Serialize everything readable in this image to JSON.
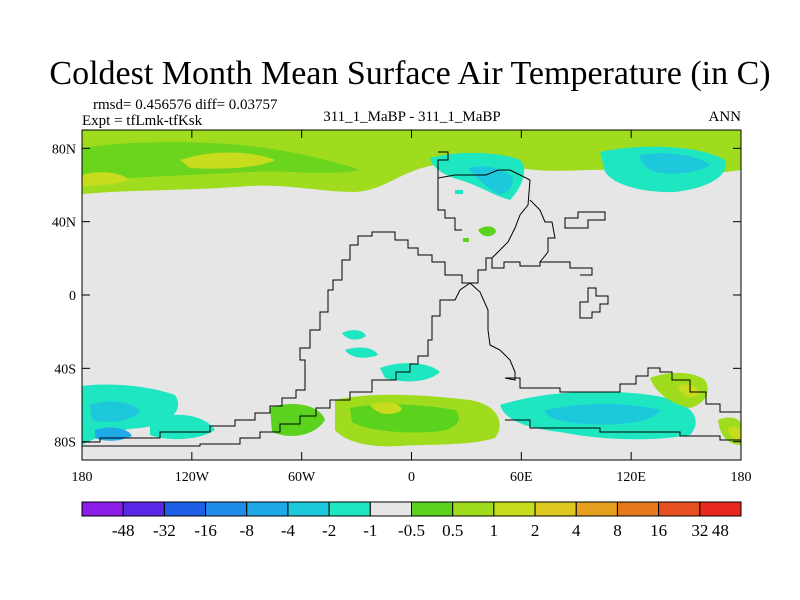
{
  "chart_data": {
    "type": "heatmap",
    "title": "Coldest Month Mean Surface Air Temperature (in C)",
    "stats_line": "rmsd= 0.456576 diff= 0.03757",
    "expt_line": "Expt = tfLmk-tfKsk",
    "center_label": "311_1_MaBP - 311_1_MaBP",
    "season_label": "ANN",
    "xlim": [
      -180,
      180
    ],
    "ylim": [
      -90,
      90
    ],
    "x_ticks": [
      {
        "value": -180,
        "label": "180"
      },
      {
        "value": -120,
        "label": "120W"
      },
      {
        "value": -60,
        "label": "60W"
      },
      {
        "value": 0,
        "label": "0"
      },
      {
        "value": 60,
        "label": "60E"
      },
      {
        "value": 120,
        "label": "120E"
      },
      {
        "value": 180,
        "label": "180"
      }
    ],
    "y_ticks": [
      {
        "value": 80,
        "label": "80N"
      },
      {
        "value": 40,
        "label": "40N"
      },
      {
        "value": 0,
        "label": "0"
      },
      {
        "value": -40,
        "label": "40S"
      },
      {
        "value": -80,
        "label": "80S"
      }
    ],
    "colorbar": {
      "colors": [
        "#8c1ce8",
        "#5a28e6",
        "#1e5ee6",
        "#1e8ce8",
        "#1eaae6",
        "#1ec8dc",
        "#1ee6c0",
        "#e6e6e6",
        "#5ad21e",
        "#a0dc1e",
        "#c8dc1e",
        "#dcc81e",
        "#e6a01e",
        "#e6781e",
        "#e6501e",
        "#e6281e"
      ],
      "labels": [
        "-48",
        "-32",
        "-16",
        "-8",
        "-4",
        "-2",
        "-1",
        "-0.5",
        "0.5",
        "1",
        "2",
        "4",
        "8",
        "16",
        "32",
        "48"
      ]
    }
  }
}
